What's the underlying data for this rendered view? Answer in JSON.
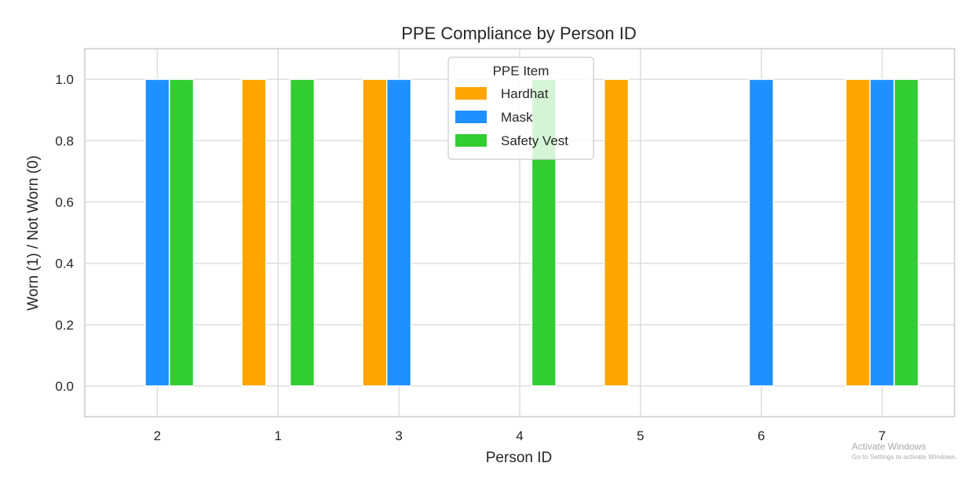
{
  "chart_data": {
    "type": "bar",
    "title": "PPE Compliance by Person ID",
    "xlabel": "Person ID",
    "ylabel": "Worn (1) / Not Worn (0)",
    "categories": [
      "2",
      "1",
      "3",
      "4",
      "5",
      "6",
      "7"
    ],
    "series": [
      {
        "name": "Hardhat",
        "color": "#FFA500",
        "values": [
          0,
          1,
          1,
          0,
          1,
          0,
          1
        ]
      },
      {
        "name": "Mask",
        "color": "#1E90FF",
        "values": [
          1,
          0,
          1,
          0,
          0,
          1,
          1
        ]
      },
      {
        "name": "Safety Vest",
        "color": "#32CD32",
        "values": [
          1,
          1,
          0,
          1,
          0,
          0,
          1
        ]
      }
    ],
    "ylim": [
      -0.1,
      1.1
    ],
    "yticks": [
      "0.0",
      "0.2",
      "0.4",
      "0.6",
      "0.8",
      "1.0"
    ],
    "grid": true,
    "legend": {
      "title": "PPE Item",
      "placement": "upper-center"
    }
  },
  "watermark": {
    "title": "Activate Windows",
    "subtitle": "Go to Settings to activate Windows."
  }
}
